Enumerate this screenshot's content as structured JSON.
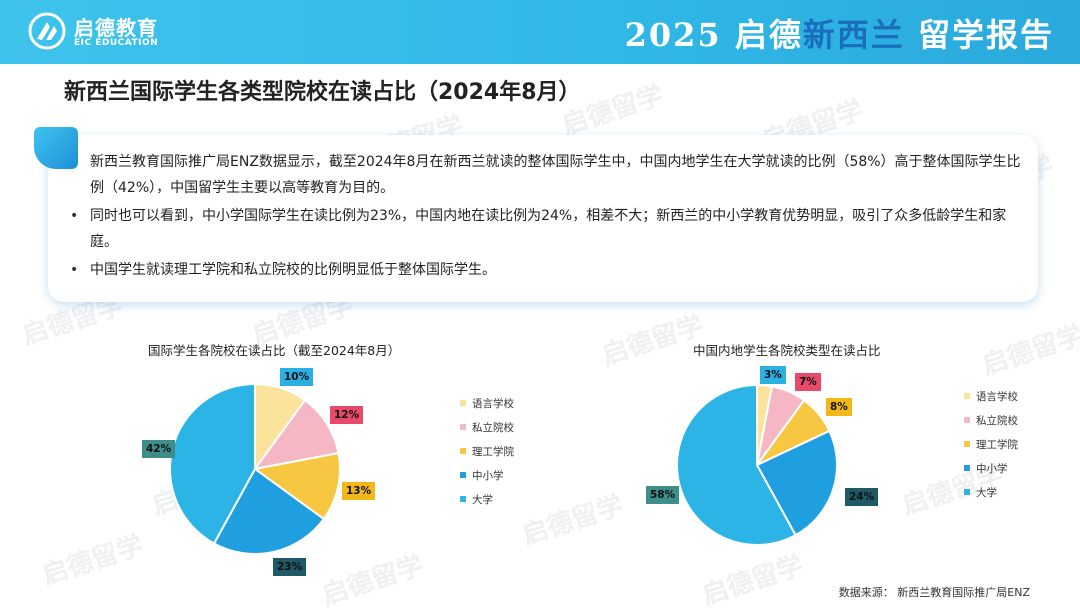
{
  "brand": {
    "name_cn": "启德教育",
    "name_en": "EIC EDUCATION"
  },
  "report": {
    "prefix": "2025 启德",
    "highlight": "新西兰",
    "suffix": "留学报告"
  },
  "page_title": "新西兰国际学生各类型院校在读占比（2024年8月）",
  "summary": [
    "新西兰教育国际推广局ENZ数据显示，截至2024年8月在新西兰就读的整体国际学生中，中国内地学生在大学就读的比例（58%）高于整体国际学生比例（42%），中国留学生主要以高等教育为目的。",
    "同时也可以看到，中小学国际学生在读比例为23%，中国内地在读比例为24%，相差不大；新西兰的中小学教育优势明显，吸引了众多低龄学生和家庭。",
    "中国学生就读理工学院和私立院校的比例明显低于整体国际学生。"
  ],
  "colors": {
    "header": "#3ec3ec",
    "language": "#fce39b",
    "private": "#f5b7c4",
    "polytech": "#f7c742",
    "school": "#1f9fe0",
    "university": "#2cb4e7"
  },
  "chart_data": [
    {
      "type": "pie",
      "title": "国际学生各院校在读占比（截至2024年8月）",
      "categories": [
        "语言学校",
        "私立院校",
        "理工学院",
        "中小学",
        "大学"
      ],
      "values": [
        10,
        12,
        13,
        23,
        42
      ],
      "labels": [
        "10%",
        "12%",
        "13%",
        "23%",
        "42%"
      ],
      "legend_position": "right"
    },
    {
      "type": "pie",
      "title": "中国内地学生各院校类型在读占比",
      "categories": [
        "语言学校",
        "私立院校",
        "理工学院",
        "中小学",
        "大学"
      ],
      "values": [
        3,
        7,
        8,
        24,
        58
      ],
      "labels": [
        "3%",
        "7%",
        "8%",
        "24%",
        "58%"
      ],
      "legend_position": "right"
    }
  ],
  "source": "数据来源：  新西兰教育国际推广局ENZ",
  "watermark": "启德留学"
}
